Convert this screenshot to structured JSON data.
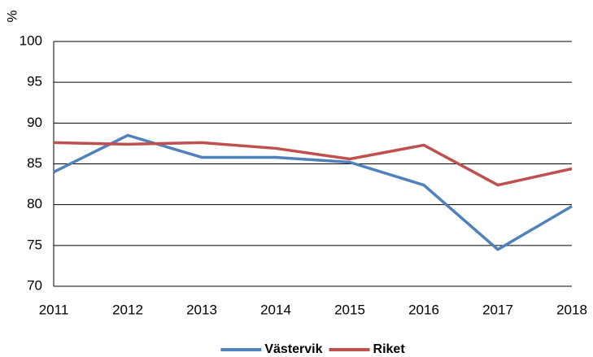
{
  "chart_data": {
    "type": "line",
    "y_label": "%",
    "categories": [
      "2011",
      "2012",
      "2013",
      "2014",
      "2015",
      "2016",
      "2017",
      "2018"
    ],
    "series": [
      {
        "name": "Västervik",
        "color": "#4f81bd",
        "values": [
          84.0,
          88.5,
          85.8,
          85.8,
          85.2,
          82.4,
          74.5,
          79.8
        ]
      },
      {
        "name": "Riket",
        "color": "#c0504d",
        "values": [
          87.6,
          87.4,
          87.6,
          86.9,
          85.6,
          87.3,
          82.4,
          84.4
        ]
      }
    ],
    "ylim": [
      70,
      100
    ],
    "yticks": [
      70,
      75,
      80,
      85,
      90,
      95,
      100
    ],
    "grid": true,
    "legend": "bottom"
  }
}
